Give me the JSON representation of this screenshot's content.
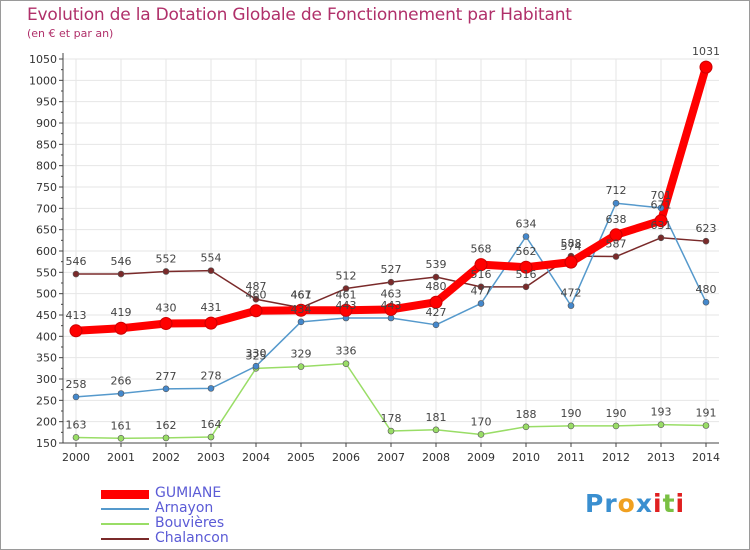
{
  "title": "Evolution de la Dotation Globale de Fonctionnement par Habitant",
  "subtitle": "(en € et par an)",
  "logo": {
    "parts": [
      {
        "text": "Pr",
        "color": "#3a8fd0"
      },
      {
        "text": "o",
        "color": "#f0a020"
      },
      {
        "text": "x",
        "color": "#3a8fd0"
      },
      {
        "text": "i",
        "color": "#e02020"
      },
      {
        "text": "t",
        "color": "#7ac043"
      },
      {
        "text": "i",
        "color": "#e02020"
      }
    ]
  },
  "chart_data": {
    "type": "line",
    "title": "Evolution de la Dotation Globale de Fonctionnement par Habitant",
    "ylabel": "(en € et par an)",
    "xlabel": "",
    "ylim": [
      150,
      1050
    ],
    "yticks": [
      150,
      200,
      250,
      300,
      350,
      400,
      450,
      500,
      550,
      600,
      650,
      700,
      750,
      800,
      850,
      900,
      950,
      1000,
      1050
    ],
    "grid": true,
    "legend_position": "bottom-left",
    "x": [
      "2000",
      "2001",
      "2002",
      "2003",
      "2004",
      "2005",
      "2006",
      "2007",
      "2008",
      "2009",
      "2010",
      "2011",
      "2012",
      "2013",
      "2014"
    ],
    "series": [
      {
        "name": "Chalancon",
        "color": "#7a2a2a",
        "marker": "#7a2a2a",
        "width": 1.5,
        "values": [
          546,
          546,
          552,
          554,
          487,
          467,
          512,
          527,
          539,
          516,
          516,
          588,
          587,
          631,
          623
        ]
      },
      {
        "name": "Bouvières",
        "color": "#99dd66",
        "marker": "#99dd66",
        "width": 1.5,
        "values": [
          163,
          161,
          162,
          164,
          325,
          329,
          336,
          178,
          181,
          170,
          188,
          190,
          190,
          193,
          191
        ]
      },
      {
        "name": "Arnayon",
        "color": "#5599cc",
        "marker": "#4488cc",
        "width": 1.5,
        "values": [
          258,
          266,
          277,
          278,
          330,
          434,
          443,
          443,
          427,
          477,
          634,
          472,
          712,
          701,
          480
        ]
      },
      {
        "name": "GUMIANE",
        "color": "#ff0000",
        "marker": "#ff0000",
        "width": 8,
        "values": [
          413,
          419,
          430,
          431,
          460,
          461,
          461,
          463,
          480,
          568,
          562,
          574,
          638,
          671,
          1031
        ]
      }
    ]
  }
}
